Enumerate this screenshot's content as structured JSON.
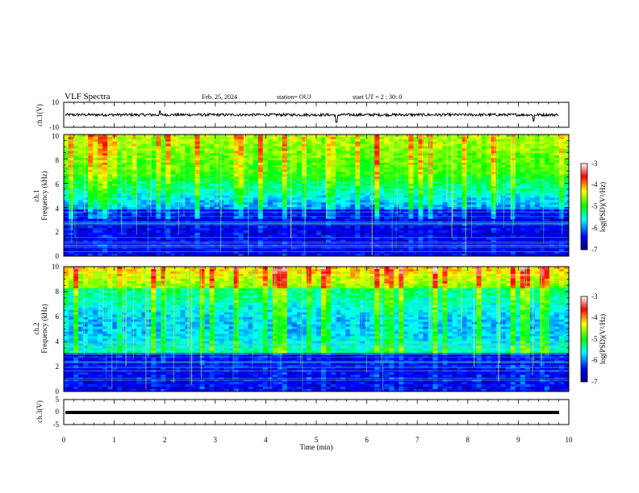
{
  "header": {
    "title": "VLF Spectra",
    "date": "Feb. 25, 2024",
    "station": "station= OUJ",
    "start": "start  UT =   2 : 30: 0"
  },
  "colors": {
    "waveform": "#000000",
    "colormap": [
      "#000080",
      "#0000ff",
      "#00ffff",
      "#00ff00",
      "#ffff00",
      "#ff0000",
      "#ffffff"
    ]
  },
  "chart_data": [
    {
      "type": "line",
      "panel": "ch1-waveform",
      "ylabel": "ch.1(V)",
      "ylim": [
        -10,
        10
      ],
      "yticks": [
        10,
        -10
      ],
      "xlim": [
        0,
        10
      ],
      "baseline": 0,
      "spikes": [
        {
          "x": 1.9,
          "y": 3
        },
        {
          "x": 5.4,
          "y": -6
        },
        {
          "x": 9.3,
          "y": -5
        }
      ]
    },
    {
      "type": "heatmap",
      "panel": "ch1-spectrogram",
      "ylabel_top": "ch.1",
      "ylabel": "Frequency (kHz)",
      "ylim": [
        0,
        10
      ],
      "yticks": [
        "0",
        "2",
        "4",
        "6",
        "8",
        "10"
      ],
      "xlim": [
        0,
        10
      ],
      "colorbar": {
        "label": "log(PSD)(V²/Hz)",
        "range": [
          -7,
          -3
        ],
        "ticks": [
          "-3",
          "-4",
          "-5",
          "-6",
          "-7"
        ]
      }
    },
    {
      "type": "heatmap",
      "panel": "ch2-spectrogram",
      "ylabel_top": "ch.2",
      "ylabel": "Frequency (kHz)",
      "ylim": [
        0,
        10
      ],
      "yticks": [
        "0",
        "2",
        "4",
        "6",
        "8",
        "10"
      ],
      "xlim": [
        0,
        10
      ],
      "colorbar": {
        "label": "log(PSD)(V²/Hz)",
        "range": [
          -7,
          -3
        ],
        "ticks": [
          "-3",
          "-4",
          "-5",
          "-6",
          "-7"
        ]
      }
    },
    {
      "type": "line",
      "panel": "ch3-waveform",
      "ylabel": "ch.3(V)",
      "ylim": [
        -5,
        5
      ],
      "yticks": [
        5,
        0,
        -5
      ],
      "xlim": [
        0,
        10
      ],
      "baseline": -1.8
    }
  ],
  "xaxis": {
    "label": "Time (min)",
    "ticks": [
      "0",
      "1",
      "2",
      "3",
      "4",
      "5",
      "6",
      "7",
      "8",
      "9",
      "10"
    ]
  }
}
